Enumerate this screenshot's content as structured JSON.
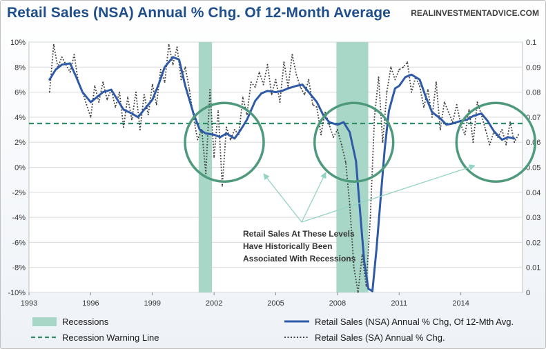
{
  "title": "Retail Sales (NSA) Annual % Chg. Of 12-Month Average",
  "source": "REALINVESTMENTADVICE.COM",
  "annotation": [
    "Retail Sales At These Levels",
    "Have Historically Been",
    "Associated With Recessions"
  ],
  "colors": {
    "nsa_line": "#2e5aa8",
    "sa_dotted": "#404040",
    "warning": "#2f8c66",
    "recession": "#a9d7c7",
    "circle": "#4f9a7c",
    "arrow": "#93d3c4",
    "grid": "#d9d9d9"
  },
  "chart_data": {
    "type": "line",
    "xlim": [
      1993,
      2017
    ],
    "x_ticks": [
      1993,
      1996,
      1999,
      2002,
      2005,
      2008,
      2011,
      2014
    ],
    "x_tick_labels": [
      "1993",
      "1996",
      "1999",
      "2002",
      "2005",
      "2008",
      "2011",
      "2014"
    ],
    "ylim_left": [
      -10,
      10
    ],
    "y_ticks_left": [
      -10,
      -8,
      -6,
      -4,
      -2,
      0,
      2,
      4,
      6,
      8,
      10
    ],
    "y_tick_labels_left": [
      "-10%",
      "-8%",
      "-6%",
      "-4%",
      "-2%",
      "0%",
      "2%",
      "4%",
      "6%",
      "8%",
      "10%"
    ],
    "ylim_right": [
      0,
      0.1
    ],
    "y_ticks_right": [
      0,
      0.01,
      0.02,
      0.03,
      0.04,
      0.05,
      0.06,
      0.07,
      0.08,
      0.09,
      0.1
    ],
    "y_tick_labels_right": [
      "0",
      "0.01",
      "0.02",
      "0.03",
      "0.04",
      "0.05",
      "0.06",
      "0.07",
      "0.08",
      "0.09",
      "0.1"
    ],
    "grid": "horizontal",
    "legend_position": "bottom",
    "legend": {
      "recessions": "Recessions",
      "warning": "Recession Warning Line",
      "nsa": "Retail Sales (NSA) Annual % Chg, Of 12-Mth Avg.",
      "sa": "Retail Sales (SA) Annual % Chg."
    },
    "recessions": [
      [
        2001.25,
        2001.9
      ],
      [
        2007.95,
        2009.5
      ]
    ],
    "warning_level": 3.5,
    "circles": [
      {
        "x": 2002.5,
        "y": 2.0
      },
      {
        "x": 2008.8,
        "y": 2.0
      },
      {
        "x": 2015.7,
        "y": 2.0
      }
    ],
    "series": [
      {
        "name": "Retail Sales (NSA) Annual % Chg, Of 12-Mth Avg.",
        "style": "solid",
        "x": [
          1994.0,
          1994.3,
          1994.6,
          1995.0,
          1995.3,
          1995.6,
          1996.0,
          1996.3,
          1996.6,
          1997.0,
          1997.3,
          1997.6,
          1998.0,
          1998.3,
          1998.6,
          1999.0,
          1999.3,
          1999.6,
          2000.0,
          2000.3,
          2000.6,
          2001.0,
          2001.3,
          2001.6,
          2002.0,
          2002.3,
          2002.6,
          2003.0,
          2003.3,
          2003.6,
          2004.0,
          2004.3,
          2004.6,
          2005.0,
          2005.3,
          2005.6,
          2006.0,
          2006.3,
          2006.6,
          2007.0,
          2007.3,
          2007.6,
          2008.0,
          2008.3,
          2008.6,
          2008.9,
          2009.1,
          2009.3,
          2009.5,
          2009.7,
          2009.9,
          2010.1,
          2010.3,
          2010.5,
          2010.8,
          2011.0,
          2011.3,
          2011.6,
          2012.0,
          2012.3,
          2012.6,
          2013.0,
          2013.3,
          2013.6,
          2014.0,
          2014.3,
          2014.6,
          2015.0,
          2015.3,
          2015.6,
          2016.0,
          2016.3,
          2016.6
        ],
        "values": [
          7.0,
          7.8,
          8.2,
          8.3,
          7.2,
          6.0,
          5.2,
          5.6,
          6.0,
          6.2,
          5.4,
          4.6,
          4.3,
          4.0,
          4.6,
          5.4,
          6.6,
          8.0,
          8.8,
          8.6,
          6.5,
          4.3,
          3.0,
          2.7,
          2.6,
          2.4,
          2.7,
          2.3,
          3.0,
          3.8,
          5.3,
          5.9,
          6.1,
          6.0,
          6.1,
          6.3,
          6.5,
          6.6,
          6.0,
          5.2,
          4.2,
          3.6,
          3.4,
          3.6,
          2.8,
          0.5,
          -3.5,
          -7.5,
          -9.7,
          -9.9,
          -6.5,
          -2.5,
          1.5,
          4.5,
          6.3,
          6.5,
          7.2,
          7.4,
          7.0,
          5.6,
          4.4,
          3.9,
          3.4,
          3.5,
          3.7,
          3.8,
          4.1,
          4.3,
          3.7,
          2.9,
          2.2,
          2.4,
          2.3
        ]
      },
      {
        "name": "Retail Sales (SA) Annual % Chg.",
        "style": "dotted",
        "x": [
          1994.0,
          1994.2,
          1994.4,
          1994.6,
          1994.8,
          1995.0,
          1995.2,
          1995.4,
          1995.6,
          1995.8,
          1996.0,
          1996.2,
          1996.4,
          1996.6,
          1996.8,
          1997.0,
          1997.2,
          1997.4,
          1997.6,
          1997.8,
          1998.0,
          1998.2,
          1998.4,
          1998.6,
          1998.8,
          1999.0,
          1999.2,
          1999.4,
          1999.6,
          1999.8,
          2000.0,
          2000.2,
          2000.4,
          2000.6,
          2000.8,
          2001.0,
          2001.2,
          2001.4,
          2001.6,
          2001.8,
          2002.0,
          2002.2,
          2002.4,
          2002.6,
          2002.8,
          2003.0,
          2003.2,
          2003.4,
          2003.6,
          2003.8,
          2004.0,
          2004.2,
          2004.4,
          2004.6,
          2004.8,
          2005.0,
          2005.2,
          2005.4,
          2005.6,
          2005.8,
          2006.0,
          2006.2,
          2006.4,
          2006.6,
          2006.8,
          2007.0,
          2007.2,
          2007.4,
          2007.6,
          2007.8,
          2008.0,
          2008.2,
          2008.4,
          2008.6,
          2008.8,
          2009.0,
          2009.2,
          2009.4,
          2009.6,
          2009.8,
          2010.0,
          2010.2,
          2010.4,
          2010.6,
          2010.8,
          2011.0,
          2011.2,
          2011.4,
          2011.6,
          2011.8,
          2012.0,
          2012.2,
          2012.4,
          2012.6,
          2012.8,
          2013.0,
          2013.2,
          2013.4,
          2013.6,
          2013.8,
          2014.0,
          2014.2,
          2014.4,
          2014.6,
          2014.8,
          2015.0,
          2015.2,
          2015.4,
          2015.6,
          2015.8,
          2016.0,
          2016.2,
          2016.4,
          2016.6,
          2016.8
        ],
        "values": [
          6.0,
          9.8,
          8.0,
          8.8,
          8.2,
          7.6,
          9.0,
          6.8,
          6.0,
          5.0,
          4.0,
          6.5,
          5.2,
          6.8,
          5.4,
          6.2,
          4.8,
          6.0,
          3.2,
          5.6,
          3.8,
          6.0,
          3.0,
          5.8,
          4.2,
          6.6,
          5.0,
          7.8,
          6.8,
          9.8,
          8.2,
          9.6,
          7.0,
          8.0,
          6.2,
          4.0,
          2.2,
          3.0,
          -0.5,
          6.2,
          0.8,
          4.5,
          -1.5,
          3.2,
          2.2,
          3.0,
          2.6,
          5.6,
          4.2,
          6.8,
          6.4,
          7.6,
          6.6,
          8.2,
          5.8,
          7.0,
          5.2,
          8.4,
          6.4,
          9.0,
          7.4,
          6.4,
          5.8,
          7.0,
          5.0,
          4.8,
          2.6,
          4.4,
          3.4,
          2.4,
          3.0,
          1.8,
          0.4,
          -3.0,
          -8.0,
          -10.0,
          -7.0,
          -9.5,
          -4.0,
          4.0,
          7.2,
          2.0,
          6.0,
          8.0,
          7.0,
          7.8,
          8.0,
          8.4,
          6.0,
          7.2,
          6.5,
          4.8,
          6.2,
          4.0,
          6.8,
          3.0,
          5.2,
          4.4,
          3.6,
          5.0,
          3.4,
          2.6,
          4.6,
          2.0,
          5.2,
          4.2,
          3.0,
          1.8,
          2.8,
          2.4,
          3.0,
          1.8,
          3.6,
          2.0,
          2.6
        ]
      }
    ]
  }
}
